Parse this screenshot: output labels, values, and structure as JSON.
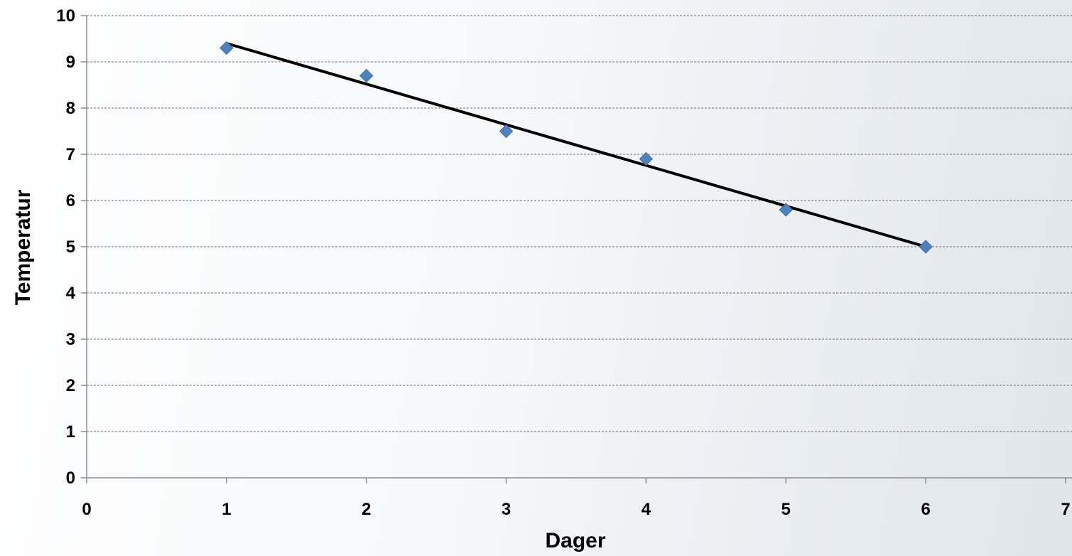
{
  "chart_data": {
    "type": "scatter",
    "xlabel": "Dager",
    "ylabel": "Temperatur",
    "xlim": [
      0,
      7
    ],
    "ylim": [
      0,
      10
    ],
    "x_ticks": [
      0,
      1,
      2,
      3,
      4,
      5,
      6,
      7
    ],
    "y_ticks": [
      0,
      1,
      2,
      3,
      4,
      5,
      6,
      7,
      8,
      9,
      10
    ],
    "grid": "horizontal-dashed",
    "legend": "none",
    "series": [
      {
        "marker": "diamond",
        "color": "#4f81bd",
        "x": [
          1,
          2,
          3,
          4,
          5,
          6
        ],
        "y": [
          9.3,
          8.7,
          7.5,
          6.9,
          5.8,
          5.0
        ]
      }
    ],
    "trendline": {
      "type": "linear",
      "color": "#000000",
      "x": [
        1,
        6
      ],
      "y": [
        9.4,
        5.0
      ]
    }
  }
}
